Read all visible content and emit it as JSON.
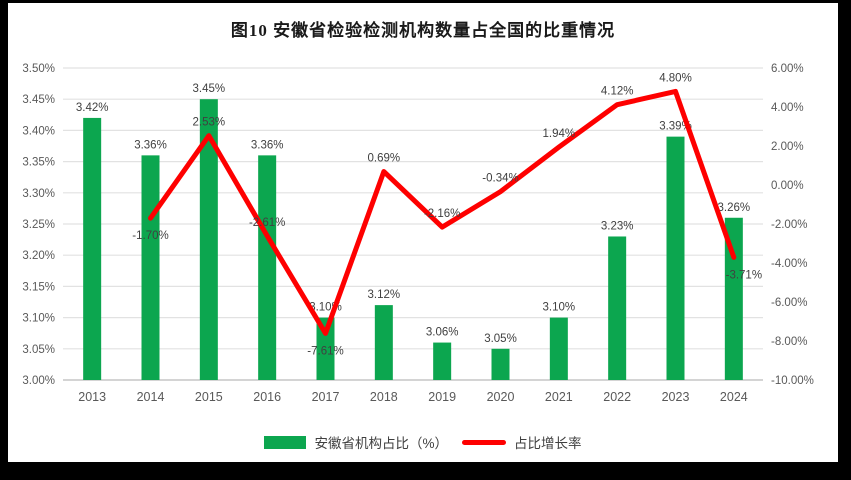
{
  "page": {
    "frame_color": "#000000",
    "chart_background": "#ffffff"
  },
  "chart": {
    "title": "图10 安徽省检验检测机构数量占全国的比重情况",
    "legend": {
      "bar_label": "安徽省机构占比（%）",
      "line_label": "占比增长率"
    },
    "colors": {
      "bar": "#0ca64f",
      "line": "#fe0000",
      "gridline": "#e2e2e2",
      "axis_line": "#c6c6c6",
      "tick_text": "#595959",
      "data_label_text": "#404040"
    }
  },
  "chart_data": {
    "type": "bar",
    "subtype": "bar+line combo, dual axis",
    "title": "图10 安徽省检验检测机构数量占全国的比重情况",
    "categories": [
      "2013",
      "2014",
      "2015",
      "2016",
      "2017",
      "2018",
      "2019",
      "2020",
      "2021",
      "2022",
      "2023",
      "2024"
    ],
    "series": [
      {
        "name": "安徽省机构占比（%）",
        "type": "bar",
        "axis": "left",
        "color": "#0ca64f",
        "values": [
          3.42,
          3.36,
          3.45,
          3.36,
          3.1,
          3.12,
          3.06,
          3.05,
          3.1,
          3.23,
          3.39,
          3.26
        ],
        "labels": [
          "3.42%",
          "3.36%",
          "3.45%",
          "3.36%",
          "3.10%",
          "3.12%",
          "3.06%",
          "3.05%",
          "3.10%",
          "3.23%",
          "3.39%",
          "3.26%"
        ]
      },
      {
        "name": "占比增长率",
        "type": "line",
        "axis": "right",
        "color": "#fe0000",
        "values": [
          null,
          -1.7,
          2.53,
          -2.61,
          -7.61,
          0.69,
          -2.16,
          -0.34,
          1.94,
          4.12,
          4.8,
          -3.71
        ],
        "labels": [
          null,
          "-1.70%",
          "2.53%",
          "-2.61%",
          "-7.61%",
          "0.69%",
          "-2.16%",
          "-0.34%",
          "1.94%",
          "4.12%",
          "4.80%",
          "-3.71%"
        ],
        "label_pos": [
          null,
          "below",
          "above",
          "above",
          "below",
          "above",
          "above",
          "above",
          "above",
          "above",
          "above",
          "below"
        ]
      }
    ],
    "left_axis": {
      "min": 3.0,
      "max": 3.5,
      "step": 0.05,
      "ticks": [
        "3.50%",
        "3.45%",
        "3.40%",
        "3.35%",
        "3.30%",
        "3.25%",
        "3.20%",
        "3.15%",
        "3.10%",
        "3.05%",
        "3.00%"
      ]
    },
    "right_axis": {
      "min": -10.0,
      "max": 6.0,
      "step": 2.0,
      "ticks": [
        "6.00%",
        "4.00%",
        "2.00%",
        "0.00%",
        "-2.00%",
        "-4.00%",
        "-6.00%",
        "-8.00%",
        "-10.00%"
      ]
    },
    "grid": true,
    "legend_position": "bottom"
  }
}
